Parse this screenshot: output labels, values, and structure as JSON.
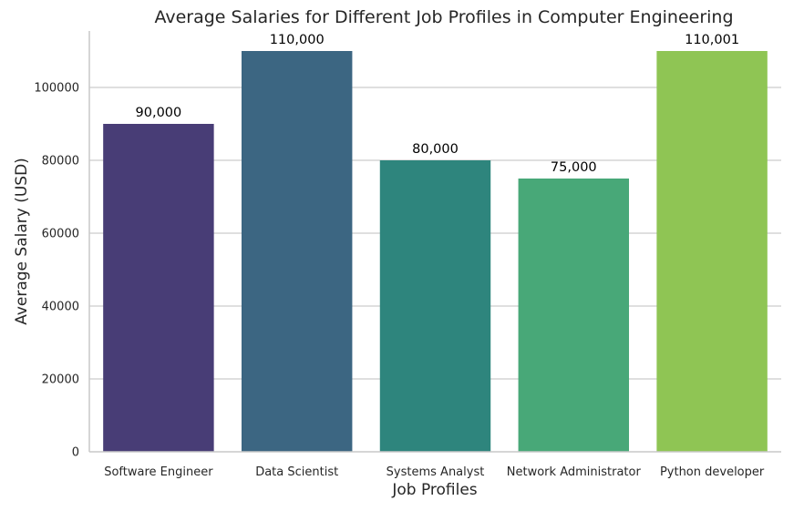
{
  "chart_data": {
    "type": "bar",
    "title": "Average Salaries for Different Job Profiles in Computer Engineering",
    "xlabel": "Job Profiles",
    "ylabel": "Average Salary (USD)",
    "categories": [
      "Software Engineer",
      "Data Scientist",
      "Systems Analyst",
      "Network Administrator",
      "Python developer"
    ],
    "values": [
      90000,
      110000,
      80000,
      75000,
      110001
    ],
    "value_labels": [
      "90,000",
      "110,000",
      "80,000",
      "75,000",
      "110,001"
    ],
    "bar_colors": [
      "#483d76",
      "#3c6682",
      "#2e857d",
      "#48a878",
      "#8fc554"
    ],
    "ylim": [
      0,
      115500
    ],
    "yticks": [
      0,
      20000,
      40000,
      60000,
      80000,
      100000
    ],
    "ytick_labels": [
      "0",
      "20000",
      "40000",
      "60000",
      "80000",
      "100000"
    ],
    "grid": "horizontal",
    "legend": "none"
  }
}
